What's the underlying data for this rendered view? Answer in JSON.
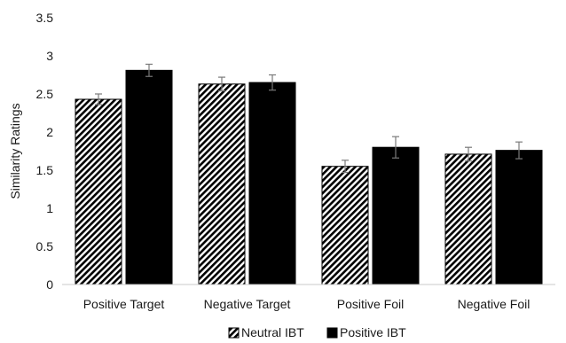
{
  "chart_data": {
    "type": "bar",
    "title": "",
    "xlabel": "",
    "ylabel": "Similarity Ratings",
    "ylim": [
      0,
      3.5
    ],
    "yticks": [
      "0",
      "0.5",
      "1",
      "1.5",
      "2",
      "2.5",
      "3",
      "3.5"
    ],
    "categories": [
      "Positive Target",
      "Negative Target",
      "Positive Foil",
      "Negative Foil"
    ],
    "series": [
      {
        "name": "Neutral IBT",
        "pattern": "diagonal-stripes",
        "color": "#000000",
        "values": [
          2.43,
          2.63,
          1.55,
          1.71
        ],
        "errors": [
          0.07,
          0.09,
          0.08,
          0.09
        ]
      },
      {
        "name": "Positive IBT",
        "pattern": "solid",
        "color": "#000000",
        "values": [
          2.81,
          2.65,
          1.8,
          1.76
        ],
        "errors": [
          0.08,
          0.1,
          0.14,
          0.11
        ]
      }
    ],
    "grid": false,
    "legend": "bottom-center",
    "error_bars": true
  }
}
